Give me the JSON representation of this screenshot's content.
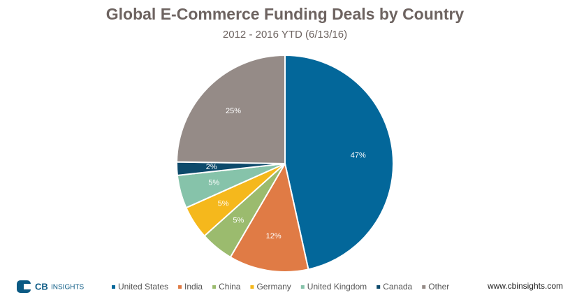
{
  "chart_data": {
    "type": "pie",
    "title": "Global E-Commerce Funding Deals by Country",
    "subtitle": "2012 - 2016 YTD (6/13/16)",
    "categories": [
      "United States",
      "India",
      "China",
      "Germany",
      "United Kingdom",
      "Canada",
      "Other"
    ],
    "values": [
      47,
      12,
      5,
      5,
      5,
      2,
      25
    ],
    "value_labels": [
      "47%",
      "12%",
      "5%",
      "5%",
      "5%",
      "2%",
      "25%"
    ],
    "colors": [
      "#03679a",
      "#e07b45",
      "#9bbb6e",
      "#f5b81c",
      "#86c3aa",
      "#0d4a6b",
      "#958b87"
    ],
    "legend": "bottom"
  },
  "logo": {
    "bold": "CB",
    "text": "INSIGHTS"
  },
  "footer": "www.cbinsights.com"
}
